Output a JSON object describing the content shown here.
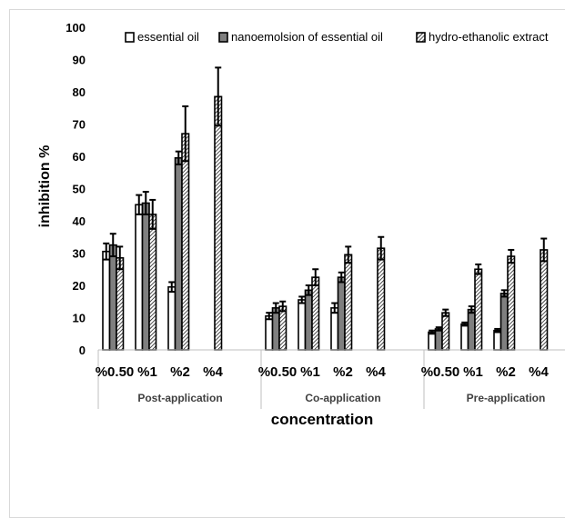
{
  "chart_data": {
    "type": "bar",
    "groups": [
      "Post-application",
      "Co-application",
      "Pre-application"
    ],
    "categories": [
      "%0.50",
      "%1",
      "%2",
      "%4"
    ],
    "series": [
      {
        "name": "essential oil",
        "fill": "white",
        "values": [
          [
            30.5,
            45,
            19.5,
            null
          ],
          [
            10.5,
            15.5,
            13,
            null
          ],
          [
            5.5,
            8,
            6,
            null
          ]
        ],
        "errors": [
          [
            2.5,
            3,
            1.5,
            null
          ],
          [
            1,
            1,
            1.5,
            null
          ],
          [
            0.5,
            0.5,
            0.5,
            null
          ]
        ]
      },
      {
        "name": "nanoemolsion of essential oil",
        "fill": "gray",
        "values": [
          [
            32.5,
            45.5,
            59.5,
            null
          ],
          [
            13,
            18.5,
            22.5,
            null
          ],
          [
            6.5,
            12.5,
            17.5,
            null
          ]
        ],
        "errors": [
          [
            3.5,
            3.5,
            2,
            null
          ],
          [
            1.5,
            1.5,
            1.5,
            null
          ],
          [
            0.5,
            1,
            1,
            null
          ]
        ]
      },
      {
        "name": "hydro-ethanolic extract",
        "fill": "hatched",
        "values": [
          [
            28.5,
            42,
            67,
            78.5
          ],
          [
            13.5,
            22.5,
            29.5,
            31.5
          ],
          [
            11.5,
            25,
            29,
            31
          ]
        ],
        "errors": [
          [
            3.5,
            4.5,
            8.5,
            9
          ],
          [
            1.5,
            2.5,
            2.5,
            3.5
          ],
          [
            1,
            1.5,
            2,
            3.5
          ]
        ]
      }
    ],
    "xlabel": "concentration",
    "ylabel": "inhibition %",
    "ylim": [
      0,
      100
    ],
    "yticks": [
      0,
      10,
      20,
      30,
      40,
      50,
      60,
      70,
      80,
      90,
      100
    ],
    "grid": false,
    "legend_position": "top",
    "colors": {
      "bar_dark": "#7f7f7f",
      "outline": "#000000",
      "text": "#000000",
      "axis": "#bfbfbf"
    }
  }
}
